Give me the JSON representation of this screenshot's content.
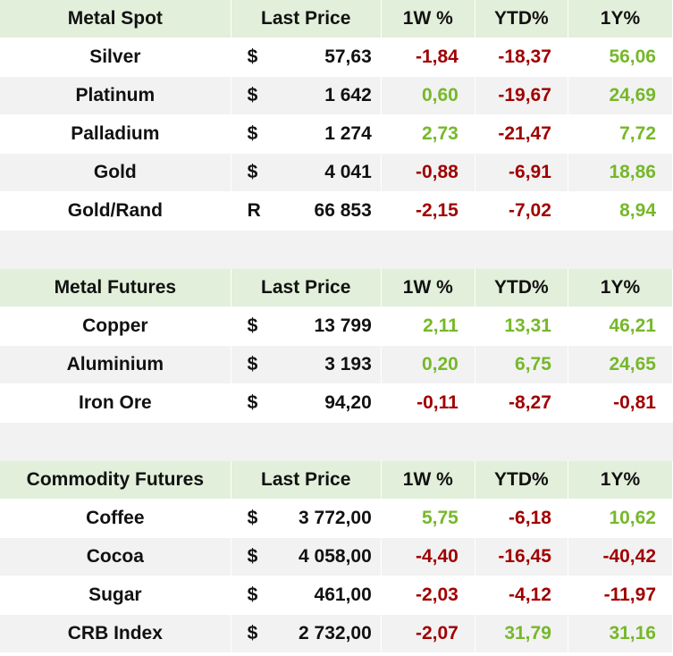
{
  "colors": {
    "positive": "#76b82a",
    "negative": "#a00000",
    "header_bg": "#e2efda",
    "band_bg": "#f2f2f2"
  },
  "sections": [
    {
      "headers": [
        "Metal Spot",
        "Last Price",
        "1W %",
        "YTD%",
        "1Y%"
      ],
      "rows": [
        {
          "name": "Silver",
          "cur": "$",
          "price": "57,63",
          "w": "-1,84",
          "ytd": "-18,37",
          "y": "56,06"
        },
        {
          "name": "Platinum",
          "cur": "$",
          "price": "1 642",
          "w": "0,60",
          "ytd": "-19,67",
          "y": "24,69"
        },
        {
          "name": "Palladium",
          "cur": "$",
          "price": "1 274",
          "w": "2,73",
          "ytd": "-21,47",
          "y": "7,72"
        },
        {
          "name": "Gold",
          "cur": "$",
          "price": "4 041",
          "w": "-0,88",
          "ytd": "-6,91",
          "y": "18,86"
        },
        {
          "name": "Gold/Rand",
          "cur": "R",
          "price": "66 853",
          "w": "-2,15",
          "ytd": "-7,02",
          "y": "8,94"
        }
      ]
    },
    {
      "headers": [
        "Metal Futures",
        "Last Price",
        "1W %",
        "YTD%",
        "1Y%"
      ],
      "rows": [
        {
          "name": "Copper",
          "cur": "$",
          "price": "13 799",
          "w": "2,11",
          "ytd": "13,31",
          "y": "46,21"
        },
        {
          "name": "Aluminium",
          "cur": "$",
          "price": "3 193",
          "w": "0,20",
          "ytd": "6,75",
          "y": "24,65"
        },
        {
          "name": "Iron Ore",
          "cur": "$",
          "price": "94,20",
          "w": "-0,11",
          "ytd": "-8,27",
          "y": "-0,81"
        }
      ]
    },
    {
      "headers": [
        "Commodity Futures",
        "Last Price",
        "1W %",
        "YTD%",
        "1Y%"
      ],
      "rows": [
        {
          "name": "Coffee",
          "cur": "$",
          "price": "3 772,00",
          "w": "5,75",
          "ytd": "-6,18",
          "y": "10,62"
        },
        {
          "name": "Cocoa",
          "cur": "$",
          "price": "4 058,00",
          "w": "-4,40",
          "ytd": "-16,45",
          "y": "-40,42"
        },
        {
          "name": "Sugar",
          "cur": "$",
          "price": "461,00",
          "w": "-2,03",
          "ytd": "-4,12",
          "y": "-11,97"
        },
        {
          "name": "CRB Index",
          "cur": "$",
          "price": "2 732,00",
          "w": "-2,07",
          "ytd": "31,79",
          "y": "31,16"
        }
      ]
    }
  ]
}
